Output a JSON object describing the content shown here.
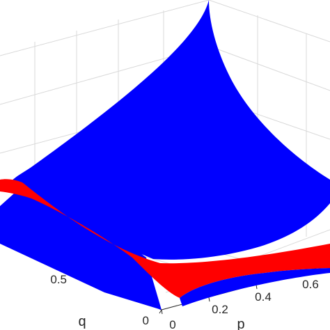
{
  "chart_data": {
    "type": "surface3d",
    "title": "",
    "xlabel": "p",
    "ylabel": "q",
    "zlabel": "",
    "x_ticks": [
      "0",
      "0.2",
      "0.4",
      "0.6"
    ],
    "y_ticks": [
      "0",
      "0.5"
    ],
    "grid": true,
    "series": [
      {
        "color": "#0000ff"
      },
      {
        "color": "#ff0000"
      }
    ]
  }
}
